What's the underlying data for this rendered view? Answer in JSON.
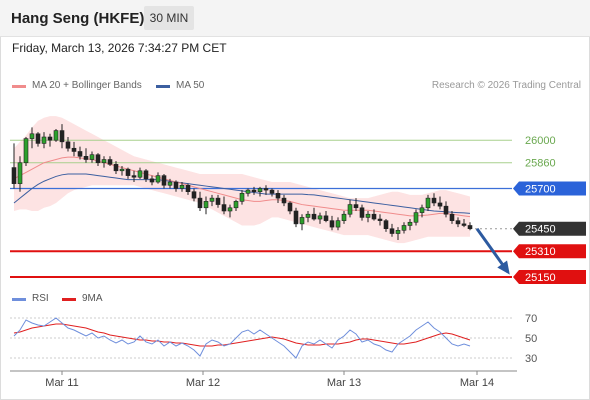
{
  "header": {
    "title": "Hang Seng (HKFE)",
    "timeframe": "30 MIN"
  },
  "datetime": "Friday, March 13, 2026 7:34:27 PM CET",
  "legend": {
    "ma20_label": "MA 20 + Bollinger Bands",
    "ma50_label": "MA 50",
    "ma20_color": "#f08c8c",
    "ma50_color": "#3c5fa0",
    "credit": "Research © 2026 Trading Central"
  },
  "rsi_legend": {
    "rsi_label": "RSI",
    "ma9_label": "9MA",
    "rsi_color": "#6f8fdc",
    "ma9_color": "#e02020"
  },
  "chart_data": [
    {
      "type": "candlestick",
      "title": "Hang Seng (HKFE)",
      "x_tick_labels": [
        "Mar 11",
        "Mar 12",
        "Mar 13",
        "Mar 14"
      ],
      "y_range": [
        25100,
        26250
      ],
      "candles": [
        [
          25830,
          25980,
          25700,
          25730
        ],
        [
          25730,
          25900,
          25680,
          25860
        ],
        [
          25860,
          26020,
          25840,
          26010
        ],
        [
          26010,
          26080,
          25950,
          26040
        ],
        [
          26040,
          26050,
          25960,
          25980
        ],
        [
          25980,
          26050,
          25950,
          26020
        ],
        [
          26020,
          26040,
          25960,
          26000
        ],
        [
          26000,
          26070,
          25990,
          26060
        ],
        [
          26060,
          26100,
          25950,
          25990
        ],
        [
          25990,
          26020,
          25930,
          25950
        ],
        [
          25950,
          25990,
          25900,
          25930
        ],
        [
          25930,
          25960,
          25880,
          25900
        ],
        [
          25900,
          25950,
          25860,
          25880
        ],
        [
          25880,
          25930,
          25860,
          25910
        ],
        [
          25910,
          25920,
          25840,
          25860
        ],
        [
          25860,
          25900,
          25830,
          25880
        ],
        [
          25880,
          25900,
          25840,
          25850
        ],
        [
          25850,
          25870,
          25790,
          25810
        ],
        [
          25810,
          25840,
          25780,
          25820
        ],
        [
          25820,
          25830,
          25760,
          25780
        ],
        [
          25780,
          25810,
          25740,
          25770
        ],
        [
          25770,
          25830,
          25760,
          25810
        ],
        [
          25810,
          25820,
          25740,
          25760
        ],
        [
          25760,
          25780,
          25720,
          25740
        ],
        [
          25740,
          25800,
          25730,
          25780
        ],
        [
          25780,
          25790,
          25700,
          25720
        ],
        [
          25720,
          25760,
          25700,
          25740
        ],
        [
          25740,
          25750,
          25680,
          25700
        ],
        [
          25700,
          25740,
          25680,
          25720
        ],
        [
          25720,
          25730,
          25660,
          25680
        ],
        [
          25680,
          25700,
          25620,
          25640
        ],
        [
          25640,
          25680,
          25560,
          25580
        ],
        [
          25580,
          25650,
          25540,
          25620
        ],
        [
          25620,
          25660,
          25590,
          25640
        ],
        [
          25640,
          25660,
          25580,
          25600
        ],
        [
          25600,
          25650,
          25540,
          25560
        ],
        [
          25560,
          25600,
          25520,
          25580
        ],
        [
          25580,
          25630,
          25560,
          25620
        ],
        [
          25620,
          25690,
          25600,
          25670
        ],
        [
          25670,
          25700,
          25650,
          25690
        ],
        [
          25690,
          25710,
          25660,
          25680
        ],
        [
          25680,
          25710,
          25650,
          25700
        ],
        [
          25700,
          25720,
          25660,
          25690
        ],
        [
          25690,
          25700,
          25650,
          25670
        ],
        [
          25670,
          25690,
          25610,
          25640
        ],
        [
          25640,
          25660,
          25590,
          25610
        ],
        [
          25610,
          25620,
          25540,
          25560
        ],
        [
          25560,
          25580,
          25460,
          25480
        ],
        [
          25480,
          25540,
          25440,
          25520
        ],
        [
          25520,
          25560,
          25490,
          25540
        ],
        [
          25540,
          25580,
          25500,
          25510
        ],
        [
          25510,
          25550,
          25480,
          25530
        ],
        [
          25530,
          25560,
          25490,
          25500
        ],
        [
          25500,
          25530,
          25440,
          25460
        ],
        [
          25460,
          25520,
          25440,
          25500
        ],
        [
          25500,
          25560,
          25480,
          25540
        ],
        [
          25540,
          25630,
          25520,
          25600
        ],
        [
          25600,
          25640,
          25560,
          25580
        ],
        [
          25580,
          25600,
          25500,
          25520
        ],
        [
          25520,
          25560,
          25490,
          25540
        ],
        [
          25540,
          25570,
          25500,
          25510
        ],
        [
          25510,
          25540,
          25470,
          25500
        ],
        [
          25500,
          25510,
          25430,
          25450
        ],
        [
          25450,
          25480,
          25400,
          25420
        ],
        [
          25420,
          25460,
          25380,
          25440
        ],
        [
          25440,
          25490,
          25420,
          25470
        ],
        [
          25470,
          25510,
          25440,
          25490
        ],
        [
          25490,
          25570,
          25470,
          25550
        ],
        [
          25550,
          25600,
          25520,
          25580
        ],
        [
          25580,
          25660,
          25560,
          25640
        ],
        [
          25640,
          25670,
          25590,
          25610
        ],
        [
          25610,
          25650,
          25570,
          25590
        ],
        [
          25590,
          25620,
          25520,
          25540
        ],
        [
          25540,
          25560,
          25480,
          25500
        ],
        [
          25500,
          25520,
          25460,
          25480
        ],
        [
          25480,
          25510,
          25460,
          25470
        ],
        [
          25470,
          25490,
          25440,
          25450
        ]
      ],
      "ma20": [
        25760,
        25780,
        25800,
        25820,
        25840,
        25860,
        25870,
        25880,
        25890,
        25895,
        25895,
        25890,
        25885,
        25880,
        25870,
        25860,
        25850,
        25840,
        25830,
        25820,
        25810,
        25800,
        25790,
        25780,
        25770,
        25760,
        25750,
        25740,
        25730,
        25720,
        25710,
        25700,
        25690,
        25680,
        25670,
        25660,
        25650,
        25640,
        25630,
        25625,
        25620,
        25620,
        25625,
        25630,
        25630,
        25625,
        25620,
        25610,
        25600,
        25595,
        25590,
        25585,
        25580,
        25575,
        25570,
        25565,
        25565,
        25565,
        25565,
        25565,
        25560,
        25555,
        25550,
        25545,
        25540,
        25535,
        25530,
        25530,
        25532,
        25535,
        25540,
        25545,
        25545,
        25540,
        25535,
        25530,
        25525
      ],
      "bollinger_upper": [
        25950,
        25990,
        26030,
        26080,
        26120,
        26140,
        26150,
        26150,
        26140,
        26120,
        26100,
        26080,
        26060,
        26040,
        26020,
        26000,
        25980,
        25960,
        25940,
        25920,
        25900,
        25890,
        25880,
        25870,
        25860,
        25850,
        25840,
        25830,
        25820,
        25810,
        25800,
        25790,
        25790,
        25790,
        25790,
        25790,
        25790,
        25790,
        25790,
        25780,
        25770,
        25760,
        25750,
        25740,
        25740,
        25740,
        25740,
        25730,
        25720,
        25710,
        25700,
        25690,
        25680,
        25670,
        25660,
        25650,
        25640,
        25640,
        25640,
        25640,
        25650,
        25660,
        25670,
        25680,
        25680,
        25670,
        25660,
        25660,
        25660,
        25670,
        25680,
        25690,
        25690,
        25680,
        25670,
        25660,
        25650
      ],
      "bollinger_lower": [
        25560,
        25570,
        25570,
        25560,
        25560,
        25580,
        25590,
        25610,
        25640,
        25670,
        25690,
        25700,
        25710,
        25720,
        25720,
        25720,
        25720,
        25720,
        25720,
        25720,
        25720,
        25710,
        25700,
        25690,
        25680,
        25670,
        25660,
        25650,
        25640,
        25630,
        25620,
        25610,
        25590,
        25570,
        25550,
        25530,
        25510,
        25490,
        25470,
        25470,
        25470,
        25480,
        25500,
        25520,
        25520,
        25510,
        25500,
        25490,
        25480,
        25470,
        25460,
        25450,
        25440,
        25430,
        25420,
        25410,
        25410,
        25410,
        25410,
        25410,
        25400,
        25390,
        25380,
        25370,
        25360,
        25360,
        25370,
        25380,
        25390,
        25400,
        25400,
        25400,
        25400,
        25400,
        25400,
        25400,
        25400
      ],
      "ma50": [
        25610,
        25640,
        25670,
        25700,
        25725,
        25745,
        25760,
        25775,
        25785,
        25790,
        25790,
        25790,
        25790,
        25785,
        25780,
        25775,
        25770,
        25765,
        25760,
        25755,
        25755,
        25755,
        25755,
        25755,
        25755,
        25750,
        25745,
        25740,
        25735,
        25730,
        25725,
        25720,
        25715,
        25710,
        25705,
        25700,
        25695,
        25690,
        25685,
        25680,
        25675,
        25670,
        25665,
        25665,
        25665,
        25665,
        25665,
        25665,
        25665,
        25662,
        25660,
        25655,
        25650,
        25645,
        25640,
        25635,
        25630,
        25625,
        25620,
        25615,
        25610,
        25605,
        25600,
        25595,
        25590,
        25585,
        25580,
        25575,
        25570,
        25565,
        25560,
        25558,
        25555,
        25552,
        25550,
        25548,
        25545
      ],
      "levels": [
        {
          "value": 26000,
          "label": "26000",
          "kind": "resistance"
        },
        {
          "value": 25860,
          "label": "25860",
          "kind": "resistance"
        },
        {
          "value": 25700,
          "label": "25700",
          "kind": "pivot"
        },
        {
          "value": 25450,
          "label": "25450",
          "kind": "last"
        },
        {
          "value": 25310,
          "label": "25310",
          "kind": "support"
        },
        {
          "value": 25150,
          "label": "25150",
          "kind": "support"
        }
      ],
      "forecast_arrow": {
        "from": 25450,
        "to": 25180
      }
    },
    {
      "type": "line",
      "title": "RSI",
      "y_range": [
        20,
        80
      ],
      "y_tick_labels": [
        "70",
        "50",
        "30"
      ],
      "y_ticks": [
        70,
        50,
        30
      ],
      "series": [
        {
          "name": "RSI",
          "values": [
            52,
            58,
            68,
            65,
            63,
            62,
            66,
            70,
            65,
            60,
            58,
            55,
            52,
            55,
            50,
            52,
            48,
            45,
            48,
            44,
            46,
            52,
            46,
            44,
            48,
            42,
            46,
            42,
            45,
            42,
            38,
            32,
            44,
            48,
            46,
            42,
            44,
            50,
            56,
            58,
            54,
            58,
            54,
            50,
            46,
            42,
            36,
            30,
            42,
            46,
            44,
            48,
            44,
            40,
            48,
            52,
            58,
            54,
            46,
            48,
            44,
            42,
            38,
            36,
            44,
            48,
            52,
            58,
            62,
            66,
            60,
            56,
            50,
            44,
            42,
            44,
            42
          ]
        },
        {
          "name": "9MA",
          "values": [
            55,
            56,
            58,
            60,
            61,
            62,
            63,
            64,
            64,
            63,
            62,
            61,
            60,
            58,
            56,
            55,
            53,
            52,
            51,
            50,
            49,
            48,
            48,
            47,
            47,
            46,
            46,
            45,
            45,
            44,
            43,
            42,
            42,
            42,
            43,
            43,
            44,
            45,
            46,
            47,
            48,
            49,
            50,
            51,
            50,
            49,
            47,
            45,
            44,
            43,
            43,
            43,
            44,
            44,
            44,
            45,
            46,
            48,
            49,
            49,
            48,
            47,
            46,
            45,
            44,
            44,
            45,
            46,
            48,
            50,
            52,
            54,
            55,
            54,
            52,
            50,
            48
          ]
        }
      ]
    }
  ]
}
